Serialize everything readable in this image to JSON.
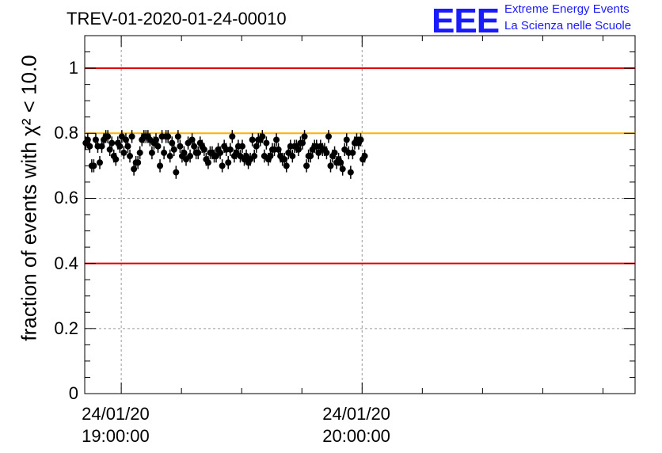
{
  "header": {
    "title": "TREV-01-2020-01-24-00010",
    "logo_text": "EEE",
    "brand_line1": "Extreme Energy Events",
    "brand_line2": "La Scienza nelle Scuole"
  },
  "colors": {
    "brand_blue": "#1a1aff",
    "limit_red": "#e00000",
    "reference_orange": "#ffb000",
    "marker": "#000000"
  },
  "chart_data": {
    "type": "scatter",
    "ylabel": "fraction of events with χ² < 10.0",
    "ylim": [
      0,
      1.1
    ],
    "yticks": [
      0,
      0.2,
      0.4,
      0.6,
      0.8,
      1
    ],
    "ytick_labels": [
      "0",
      "0.2",
      "0.4",
      "0.6",
      "0.8",
      "1"
    ],
    "xlim": [
      "2020-01-24 18:50:54",
      "2020-01-24 21:08:00"
    ],
    "xticks": [
      {
        "date": "24/01/20",
        "time": "19:00:00",
        "value": "2020-01-24 19:00:00"
      },
      {
        "date": "24/01/20",
        "time": "20:00:00",
        "value": "2020-01-24 20:00:00"
      }
    ],
    "x_minor_tick_interval_min": 15,
    "grid": true,
    "reference_lines": [
      {
        "y": 1.0,
        "color": "red"
      },
      {
        "y": 0.8,
        "color": "orange"
      },
      {
        "y": 0.4,
        "color": "red"
      }
    ],
    "point_interval_sec": 30,
    "error_bar": 0.02,
    "series": [
      {
        "values": [
          0.77,
          0.78,
          0.76,
          0.7,
          0.7,
          0.78,
          0.76,
          0.71,
          0.76,
          0.78,
          0.79,
          0.79,
          0.75,
          0.77,
          0.73,
          0.72,
          0.77,
          0.76,
          0.79,
          0.74,
          0.78,
          0.76,
          0.73,
          0.79,
          0.69,
          0.71,
          0.71,
          0.74,
          0.78,
          0.79,
          0.79,
          0.79,
          0.78,
          0.74,
          0.77,
          0.78,
          0.76,
          0.7,
          0.79,
          0.74,
          0.79,
          0.79,
          0.73,
          0.77,
          0.75,
          0.68,
          0.79,
          0.76,
          0.73,
          0.74,
          0.72,
          0.77,
          0.73,
          0.78,
          0.76,
          0.74,
          0.74,
          0.77,
          0.76,
          0.75,
          0.72,
          0.71,
          0.74,
          0.74,
          0.73,
          0.73,
          0.75,
          0.74,
          0.7,
          0.76,
          0.75,
          0.71,
          0.75,
          0.79,
          0.73,
          0.74,
          0.76,
          0.73,
          0.76,
          0.72,
          0.73,
          0.71,
          0.72,
          0.78,
          0.73,
          0.76,
          0.78,
          0.78,
          0.79,
          0.73,
          0.77,
          0.72,
          0.73,
          0.75,
          0.75,
          0.78,
          0.75,
          0.73,
          0.72,
          0.72,
          0.7,
          0.74,
          0.76,
          0.73,
          0.76,
          0.76,
          0.75,
          0.77,
          0.77,
          0.79,
          0.7,
          0.73,
          0.73,
          0.75,
          0.76,
          0.76,
          0.74,
          0.76,
          0.75,
          0.75,
          0.74,
          0.79,
          0.7,
          0.73,
          0.74,
          0.71,
          0.72,
          0.71,
          0.69,
          0.75,
          0.78,
          0.74,
          0.68,
          0.74,
          0.77,
          0.78,
          0.77,
          0.78,
          0.72,
          0.73
        ]
      }
    ]
  }
}
